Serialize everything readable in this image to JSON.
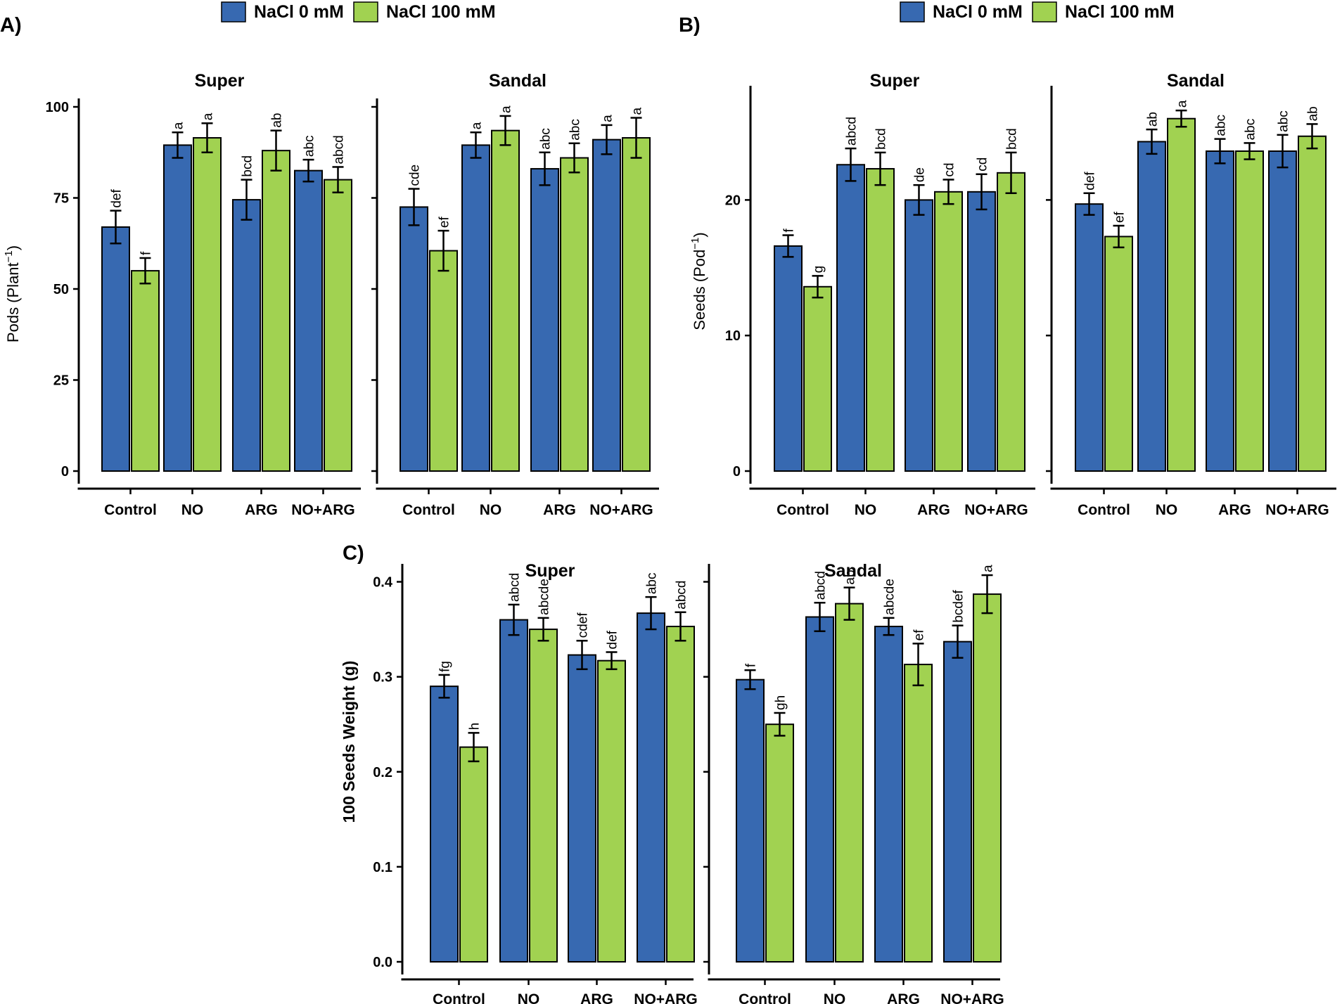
{
  "chart_data": [
    {
      "panel": "A)",
      "type": "bar",
      "legend": [
        {
          "name": "NaCl 0 mM",
          "color": "#3769B1"
        },
        {
          "name": "NaCl 100 mM",
          "color": "#A1D251"
        }
      ],
      "ylabel": "Pods (Plant",
      "ylabel_sup": "−1",
      "ylabel_close": ")",
      "ylim": [
        0,
        100
      ],
      "yticks": [
        "0",
        "25",
        "50",
        "75",
        "100"
      ],
      "categories": [
        "Control",
        "NO",
        "ARG",
        "NO+ARG"
      ],
      "facets": [
        {
          "title": "Super",
          "series": [
            {
              "name": "NaCl 0 mM",
              "values": [
                67,
                89.5,
                74.5,
                82.5
              ],
              "errors": [
                4.5,
                3.5,
                5.5,
                3
              ],
              "letters": [
                "def",
                "a",
                "bcd",
                "abc"
              ]
            },
            {
              "name": "NaCl 100 mM",
              "values": [
                55,
                91.5,
                88,
                80
              ],
              "errors": [
                3.5,
                4,
                5.5,
                3.5
              ],
              "letters": [
                "f",
                "a",
                "ab",
                "abcd"
              ]
            }
          ]
        },
        {
          "title": "Sandal",
          "series": [
            {
              "name": "NaCl 0 mM",
              "values": [
                72.5,
                89.5,
                83,
                91
              ],
              "errors": [
                5,
                3.5,
                4.5,
                4
              ],
              "letters": [
                "cde",
                "a",
                "abc",
                "a"
              ]
            },
            {
              "name": "NaCl 100 mM",
              "values": [
                60.5,
                93.5,
                86,
                91.5
              ],
              "errors": [
                5.5,
                4,
                4,
                5.5
              ],
              "letters": [
                "ef",
                "a",
                "abc",
                "a"
              ]
            }
          ]
        }
      ]
    },
    {
      "panel": "B)",
      "type": "bar",
      "legend": [
        {
          "name": "NaCl 0 mM",
          "color": "#3769B1"
        },
        {
          "name": "NaCl 100 mM",
          "color": "#A1D251"
        }
      ],
      "ylabel": "Seeds (Pod",
      "ylabel_sup": "−1",
      "ylabel_close": ")",
      "ylim": [
        0,
        27.8
      ],
      "yticks": [
        "0",
        "10",
        "20"
      ],
      "ytick_values": [
        0,
        10,
        20
      ],
      "categories": [
        "Control",
        "NO",
        "ARG",
        "NO+ARG"
      ],
      "facets": [
        {
          "title": "Super",
          "series": [
            {
              "name": "NaCl 0 mM",
              "values": [
                16.6,
                22.6,
                20,
                20.6
              ],
              "errors": [
                0.8,
                1.2,
                1.1,
                1.3
              ],
              "letters": [
                "f",
                "abcd",
                "de",
                "cd"
              ]
            },
            {
              "name": "NaCl 100 mM",
              "values": [
                13.6,
                22.3,
                20.6,
                22
              ],
              "errors": [
                0.8,
                1.2,
                0.9,
                1.5
              ],
              "letters": [
                "g",
                "bcd",
                "cd",
                "bcd"
              ]
            }
          ]
        },
        {
          "title": "Sandal",
          "series": [
            {
              "name": "NaCl 0 mM",
              "values": [
                19.7,
                24.3,
                23.6,
                23.6
              ],
              "errors": [
                0.8,
                0.9,
                0.9,
                1.2
              ],
              "letters": [
                "def",
                "ab",
                "abc",
                "abc"
              ]
            },
            {
              "name": "NaCl 100 mM",
              "values": [
                17.3,
                26,
                23.6,
                24.7
              ],
              "errors": [
                0.8,
                0.6,
                0.6,
                0.9
              ],
              "letters": [
                "ef",
                "a",
                "abc",
                "ab"
              ]
            }
          ]
        }
      ]
    },
    {
      "panel": "C)",
      "type": "bar",
      "ylabel": "100 Seeds Weight (g)",
      "ylim": [
        0,
        0.41
      ],
      "yticks": [
        "0.0",
        "0.1",
        "0.2",
        "0.3",
        "0.4"
      ],
      "ytick_values": [
        0,
        0.1,
        0.2,
        0.3,
        0.4
      ],
      "categories": [
        "Control",
        "NO",
        "ARG",
        "NO+ARG"
      ],
      "facets": [
        {
          "title": "Super",
          "series": [
            {
              "name": "NaCl 0 mM",
              "values": [
                0.29,
                0.36,
                0.323,
                0.367
              ],
              "errors": [
                0.012,
                0.016,
                0.015,
                0.017
              ],
              "letters": [
                "fg",
                "abcd",
                "cdef",
                "abc"
              ]
            },
            {
              "name": "NaCl 100 mM",
              "values": [
                0.226,
                0.35,
                0.317,
                0.353
              ],
              "errors": [
                0.015,
                0.012,
                0.009,
                0.015
              ],
              "letters": [
                "h",
                "abcde",
                "def",
                "abcd"
              ]
            }
          ]
        },
        {
          "title": "Sandal",
          "series": [
            {
              "name": "NaCl 0 mM",
              "values": [
                0.297,
                0.363,
                0.353,
                0.337
              ],
              "errors": [
                0.01,
                0.015,
                0.009,
                0.017
              ],
              "letters": [
                "f",
                "abcd",
                "abcde",
                "bcdef"
              ]
            },
            {
              "name": "NaCl 100 mM",
              "values": [
                0.25,
                0.377,
                0.313,
                0.387
              ],
              "errors": [
                0.012,
                0.017,
                0.022,
                0.02
              ],
              "letters": [
                "gh",
                "ab",
                "ef",
                "a"
              ]
            }
          ]
        }
      ]
    }
  ]
}
